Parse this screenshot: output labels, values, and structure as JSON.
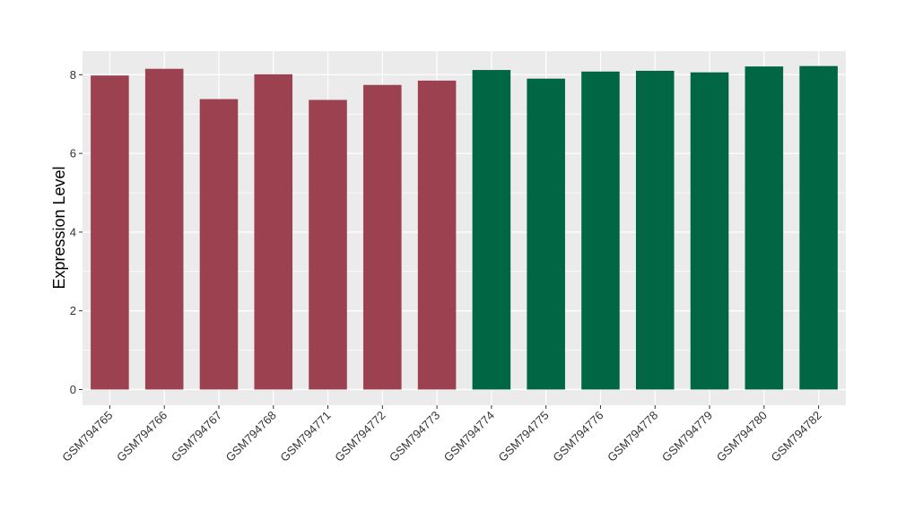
{
  "chart_data": {
    "type": "bar",
    "title": "",
    "xlabel": "",
    "ylabel": "Expression Level",
    "ylim": [
      -0.4,
      8.6
    ],
    "yticks": [
      0,
      2,
      4,
      6,
      8
    ],
    "grid": true,
    "legend": "none",
    "categories": [
      "GSM794765",
      "GSM794766",
      "GSM794767",
      "GSM794768",
      "GSM794771",
      "GSM794772",
      "GSM794773",
      "GSM794774",
      "GSM794775",
      "GSM794776",
      "GSM794778",
      "GSM794779",
      "GSM794780",
      "GSM794782"
    ],
    "values": [
      7.98,
      8.15,
      7.38,
      8.01,
      7.36,
      7.74,
      7.85,
      8.12,
      7.9,
      8.08,
      8.1,
      8.06,
      8.21,
      8.22
    ],
    "groups": [
      0,
      0,
      0,
      0,
      0,
      0,
      0,
      1,
      1,
      1,
      1,
      1,
      1,
      1
    ],
    "group_colors": [
      "#9b4150",
      "#006644"
    ],
    "panel_background": "#ebebeb",
    "grid_color": "#ffffff"
  }
}
